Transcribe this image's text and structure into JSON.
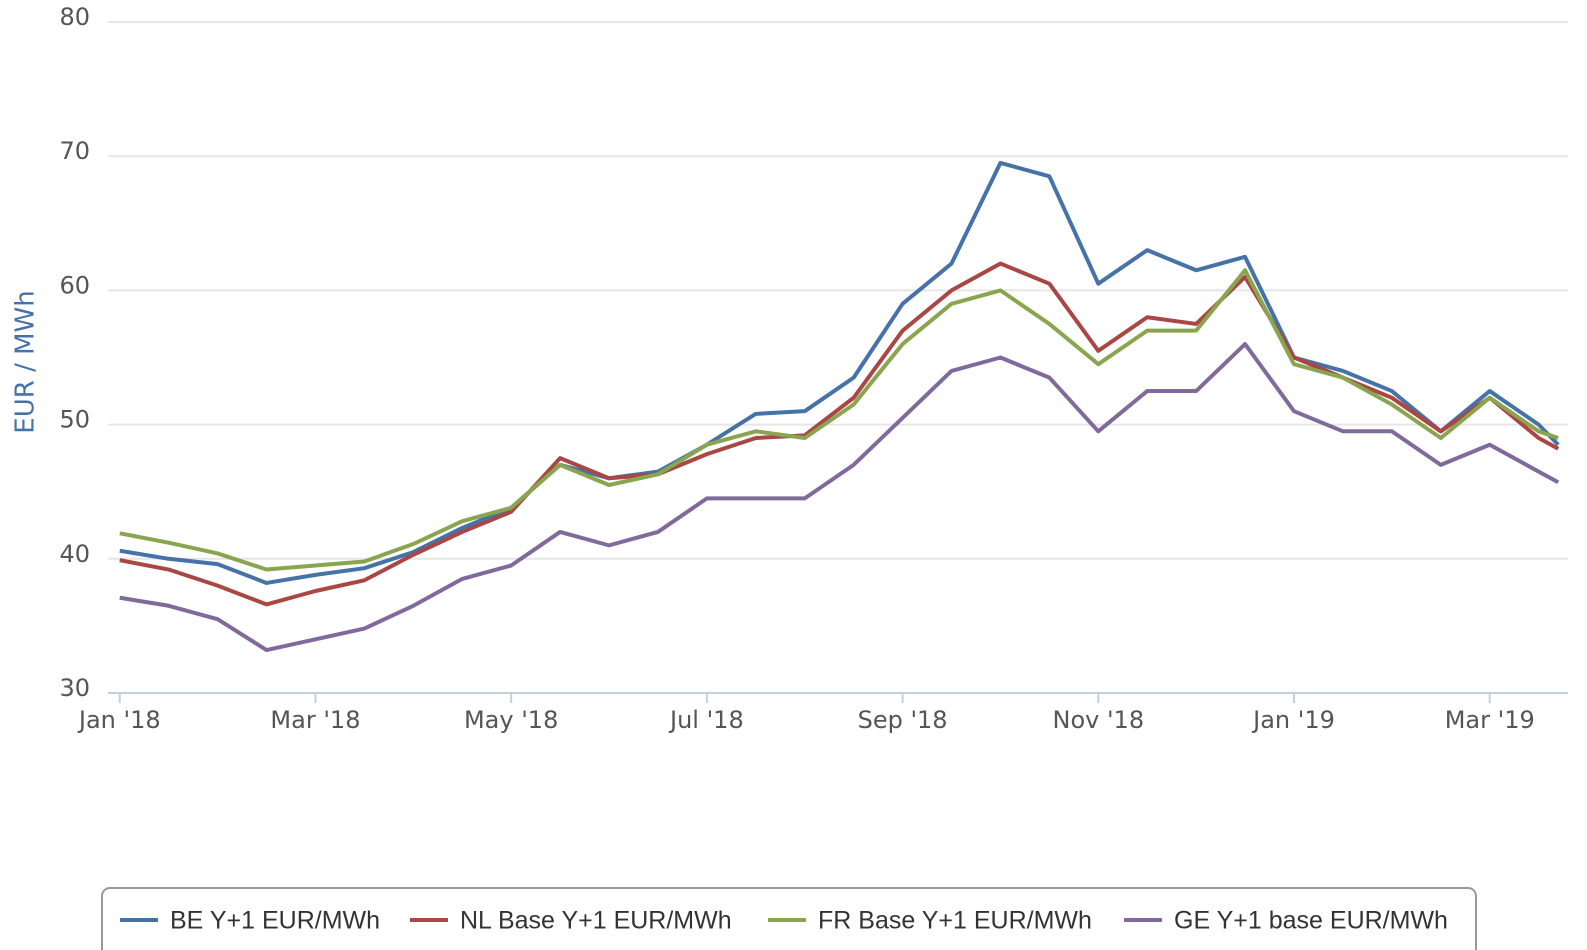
{
  "chart_data": {
    "type": "line",
    "y_axis_label": "EUR / MWh",
    "x": [
      0,
      0.5,
      1,
      1.5,
      2,
      2.5,
      3,
      3.5,
      4,
      4.5,
      5,
      5.5,
      6,
      6.5,
      7,
      7.5,
      8,
      8.5,
      9,
      9.5,
      10,
      10.5,
      11,
      11.5,
      12,
      12.5,
      13,
      13.5,
      14,
      14.5,
      14.7
    ],
    "series": [
      {
        "name": "BE Y+1 EUR/MWh",
        "color": "#4572a7",
        "values": [
          40.6,
          40.0,
          39.6,
          38.2,
          38.8,
          39.3,
          40.5,
          42.3,
          43.8,
          47.0,
          46.0,
          46.5,
          48.5,
          50.8,
          51.0,
          53.5,
          59.0,
          62.0,
          69.5,
          68.5,
          60.5,
          63.0,
          61.5,
          62.5,
          55.0,
          54.0,
          52.5,
          49.5,
          52.5,
          50.0,
          48.5
        ]
      },
      {
        "name": "NL Base Y+1 EUR/MWh",
        "color": "#aa4643",
        "values": [
          39.9,
          39.2,
          38.0,
          36.6,
          37.6,
          38.4,
          40.3,
          42.0,
          43.5,
          47.5,
          46.0,
          46.3,
          47.8,
          49.0,
          49.2,
          52.0,
          57.0,
          60.0,
          62.0,
          60.5,
          55.5,
          58.0,
          57.5,
          61.0,
          55.0,
          53.5,
          52.0,
          49.5,
          52.0,
          49.0,
          48.2
        ]
      },
      {
        "name": "FR Base Y+1 EUR/MWh",
        "color": "#89a54e",
        "values": [
          41.9,
          41.2,
          40.4,
          39.2,
          39.5,
          39.8,
          41.1,
          42.8,
          43.8,
          47.0,
          45.5,
          46.3,
          48.5,
          49.5,
          49.0,
          51.5,
          56.0,
          59.0,
          60.0,
          57.5,
          54.5,
          57.0,
          57.0,
          61.5,
          54.5,
          53.5,
          51.5,
          49.0,
          52.0,
          49.5,
          49.0
        ]
      },
      {
        "name": "GE Y+1 base EUR/MWh",
        "color": "#80699b",
        "values": [
          37.1,
          36.5,
          35.5,
          33.2,
          34.0,
          34.8,
          36.5,
          38.5,
          39.5,
          42.0,
          41.0,
          42.0,
          44.5,
          44.5,
          44.5,
          47.0,
          50.5,
          54.0,
          55.0,
          53.5,
          49.5,
          52.5,
          52.5,
          56.0,
          51.0,
          49.5,
          49.5,
          47.0,
          48.5,
          46.5,
          45.7
        ]
      }
    ],
    "xlim": [
      -0.12,
      14.8
    ],
    "xticks": [
      {
        "value": 0,
        "label": "Jan '18"
      },
      {
        "value": 2,
        "label": "Mar '18"
      },
      {
        "value": 4,
        "label": "May '18"
      },
      {
        "value": 6,
        "label": "Jul '18"
      },
      {
        "value": 8,
        "label": "Sep '18"
      },
      {
        "value": 10,
        "label": "Nov '18"
      },
      {
        "value": 12,
        "label": "Jan '19"
      },
      {
        "value": 14,
        "label": "Mar '19"
      }
    ],
    "ylim": [
      30,
      80
    ],
    "yticks": [
      30,
      40,
      50,
      60,
      70,
      80
    ],
    "grid": true,
    "legend": "bottom"
  }
}
